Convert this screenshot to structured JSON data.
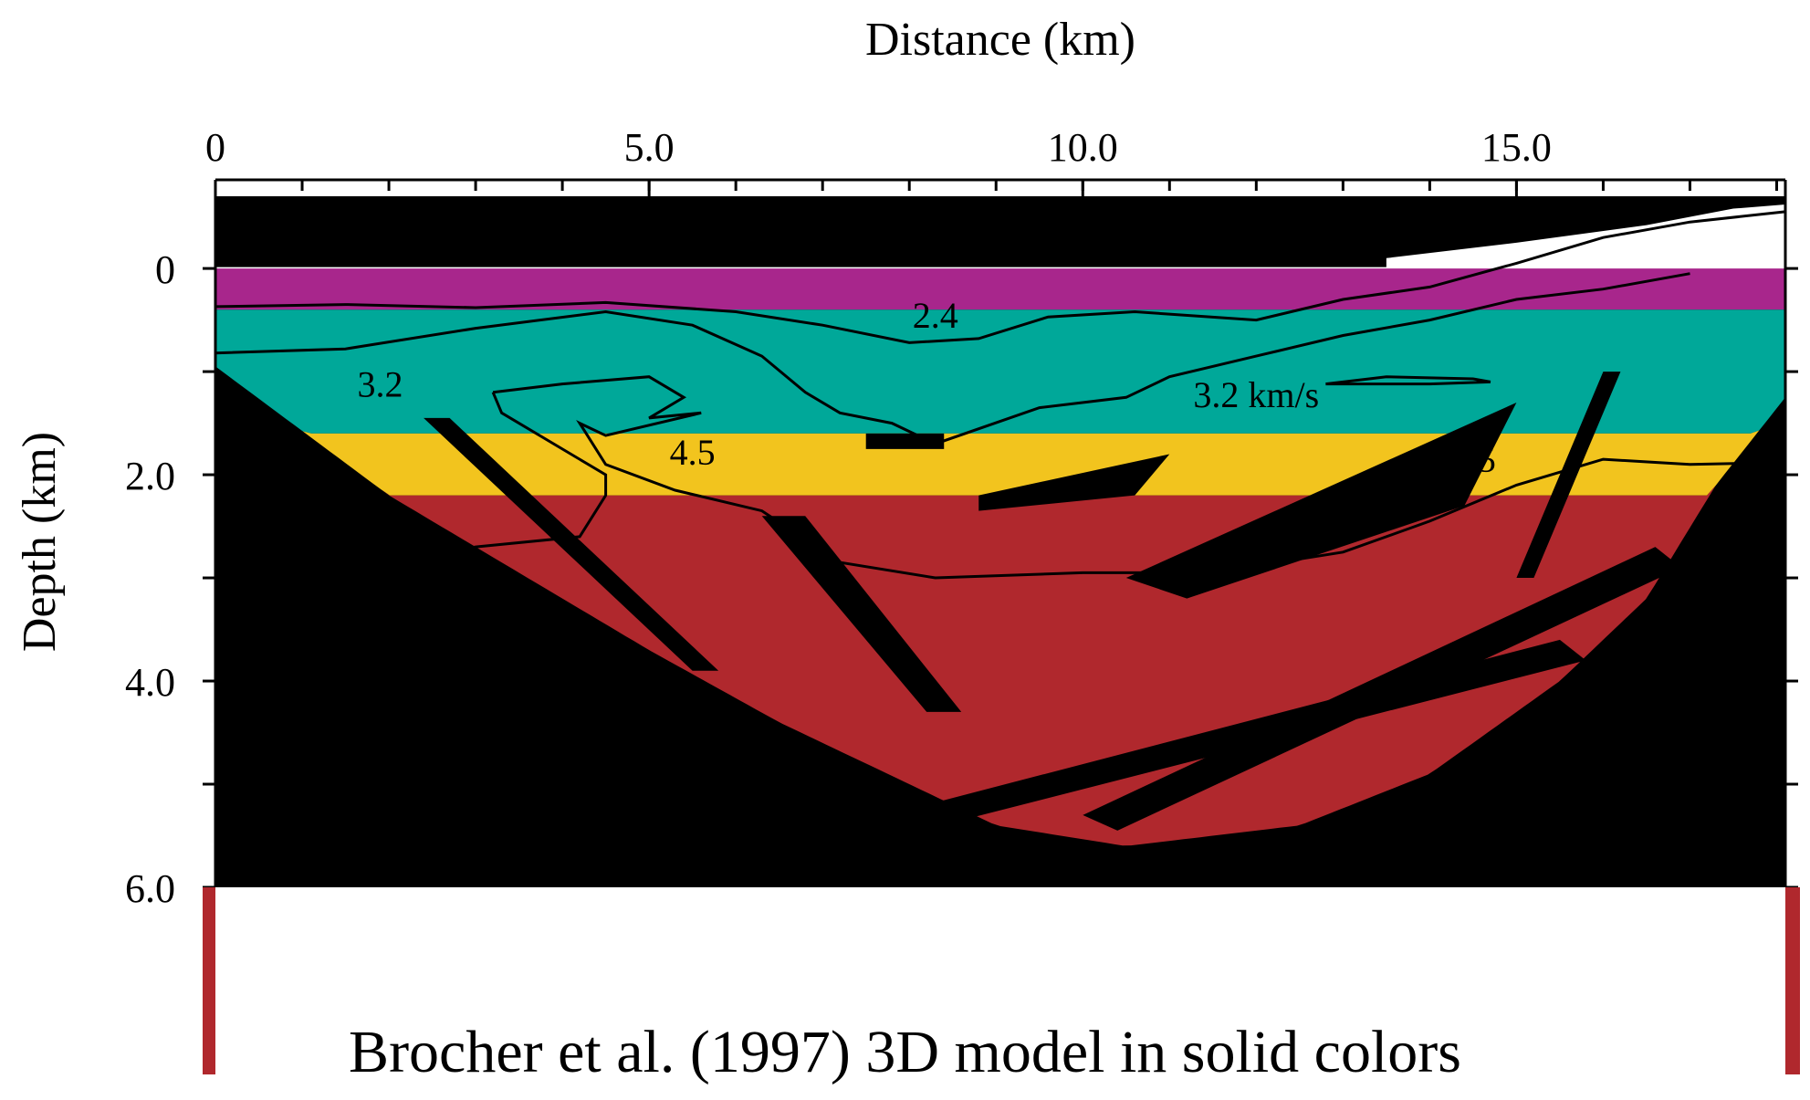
{
  "chart_data": {
    "type": "heatmap",
    "title": "",
    "xlabel": "Distance  (km)",
    "ylabel": "Depth  (km)",
    "xlim": [
      0,
      18.1
    ],
    "ylim": [
      -0.7,
      6.0
    ],
    "y_inverted": true,
    "x_axis_position": "top",
    "x_ticks": [
      0,
      5.0,
      10.0,
      15.0
    ],
    "x_tick_labels": [
      "0",
      "5.0",
      "10.0",
      "15.0"
    ],
    "x_minor_step": 1.0,
    "y_ticks": [
      0,
      2.0,
      4.0,
      6.0
    ],
    "y_tick_labels": [
      "0",
      "2.0",
      "4.0",
      "6.0"
    ],
    "y_minor_step": 1.0,
    "grid": false,
    "layers": [
      {
        "name": "layer1",
        "color": "#a8268c",
        "depth_top": 0.0,
        "depth_bottom": 0.4
      },
      {
        "name": "layer2",
        "color": "#00a899",
        "depth_top": 0.4,
        "depth_bottom": 1.6
      },
      {
        "name": "layer3",
        "color": "#f2c41e",
        "depth_top": 1.6,
        "depth_bottom": 2.2
      },
      {
        "name": "layer4",
        "color": "#b0282d",
        "depth_top": 2.2,
        "depth_bottom": 5.6
      }
    ],
    "basin_outline": [
      [
        0,
        0.95
      ],
      [
        2.0,
        2.2
      ],
      [
        3.5,
        2.95
      ],
      [
        5.0,
        3.7
      ],
      [
        6.5,
        4.4
      ],
      [
        8.0,
        5.0
      ],
      [
        9.0,
        5.4
      ],
      [
        10.5,
        5.6
      ],
      [
        12.5,
        5.4
      ],
      [
        14.0,
        4.9
      ],
      [
        15.5,
        4.0
      ],
      [
        16.5,
        3.2
      ],
      [
        17.3,
        2.1
      ],
      [
        18.1,
        1.25
      ]
    ],
    "contours": [
      {
        "label": "2.4",
        "label_at": [
          8.3,
          0.45
        ],
        "points": [
          [
            0,
            0.37
          ],
          [
            1.5,
            0.35
          ],
          [
            3.0,
            0.38
          ],
          [
            4.5,
            0.33
          ],
          [
            6.0,
            0.42
          ],
          [
            7.0,
            0.55
          ],
          [
            8.0,
            0.72
          ],
          [
            8.8,
            0.68
          ],
          [
            9.6,
            0.47
          ],
          [
            10.6,
            0.42
          ],
          [
            12.0,
            0.5
          ],
          [
            13.0,
            0.3
          ],
          [
            14.0,
            0.18
          ],
          [
            15.0,
            -0.05
          ],
          [
            16.0,
            -0.3
          ],
          [
            17.0,
            -0.45
          ],
          [
            18.1,
            -0.55
          ]
        ]
      },
      {
        "label": "3.2",
        "label_at": [
          1.9,
          1.12
        ],
        "points": [
          [
            0,
            0.82
          ],
          [
            1.5,
            0.78
          ],
          [
            3.0,
            0.58
          ],
          [
            4.5,
            0.42
          ],
          [
            5.5,
            0.55
          ],
          [
            6.3,
            0.85
          ],
          [
            6.8,
            1.2
          ],
          [
            7.2,
            1.4
          ],
          [
            7.8,
            1.5
          ],
          [
            8.3,
            1.7
          ],
          [
            9.5,
            1.35
          ],
          [
            10.5,
            1.25
          ],
          [
            11.0,
            1.05
          ],
          [
            12.0,
            0.85
          ],
          [
            13.0,
            0.65
          ],
          [
            14.0,
            0.5
          ],
          [
            15.0,
            0.3
          ],
          [
            16.0,
            0.2
          ],
          [
            17.0,
            0.05
          ]
        ]
      },
      {
        "label": "3.2 km/s",
        "label_at": [
          12.0,
          1.22
        ],
        "points": [
          [
            12.8,
            1.12
          ],
          [
            13.5,
            1.05
          ],
          [
            14.5,
            1.07
          ],
          [
            14.7,
            1.1
          ],
          [
            14.0,
            1.12
          ],
          [
            12.8,
            1.12
          ]
        ]
      },
      {
        "label": "4.5",
        "label_at": [
          5.5,
          1.78
        ],
        "points": [
          [
            3.2,
            1.2
          ],
          [
            4.0,
            1.12
          ],
          [
            5.0,
            1.05
          ],
          [
            5.4,
            1.25
          ],
          [
            5.0,
            1.45
          ],
          [
            5.6,
            1.4
          ],
          [
            4.5,
            1.62
          ],
          [
            4.2,
            1.5
          ],
          [
            4.5,
            1.9
          ],
          [
            5.3,
            2.15
          ],
          [
            6.3,
            2.35
          ],
          [
            7.2,
            2.85
          ],
          [
            8.3,
            3.0
          ],
          [
            10.0,
            2.95
          ],
          [
            11.5,
            2.95
          ],
          [
            13.0,
            2.75
          ],
          [
            14.0,
            2.45
          ],
          [
            15.0,
            2.1
          ],
          [
            16.0,
            1.85
          ],
          [
            17.0,
            1.9
          ],
          [
            18.1,
            1.88
          ]
        ]
      },
      {
        "label": "4.5",
        "label_at": [
          14.5,
          1.85
        ],
        "points": [
          [
            3.2,
            1.2
          ],
          [
            3.3,
            1.4
          ],
          [
            4.5,
            2.0
          ],
          [
            4.5,
            2.2
          ],
          [
            4.2,
            2.6
          ],
          [
            3.0,
            2.7
          ],
          [
            2.0,
            2.85
          ]
        ]
      }
    ],
    "caption": "Brocher et al. (1997) 3D model in solid colors"
  },
  "colors": {
    "background": "#000000",
    "axis": "#000000",
    "bracket": "#b0282d",
    "contour": "#000000"
  }
}
